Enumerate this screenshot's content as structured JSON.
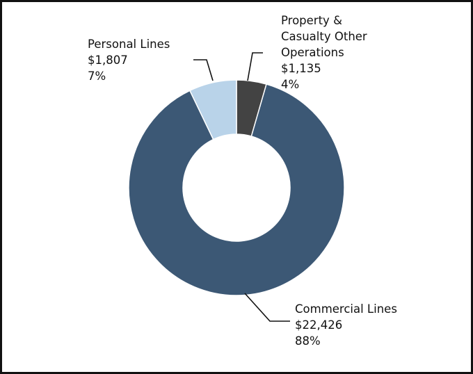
{
  "colors": {
    "commercial": "#3c5875",
    "personal": "#b9d3e9",
    "pc_other": "#434343",
    "leader": "#111111",
    "border": "#111111"
  },
  "chart_data": {
    "type": "pie",
    "subtype": "donut",
    "title": "",
    "start": "top",
    "direction": "clockwise",
    "series": [
      {
        "name": "Property & Casualty Other Operations",
        "label_lines": [
          "Property &",
          "Casualty Other",
          "Operations"
        ],
        "value_label": "$1,135",
        "value": 1135,
        "percent_label": "4%",
        "color": "#434343"
      },
      {
        "name": "Commercial Lines",
        "label_lines": [
          "Commercial Lines"
        ],
        "value_label": "$22,426",
        "value": 22426,
        "percent_label": "88%",
        "color": "#3c5875"
      },
      {
        "name": "Personal Lines",
        "label_lines": [
          "Personal Lines"
        ],
        "value_label": "$1,807",
        "value": 1807,
        "percent_label": "7%",
        "color": "#b9d3e9"
      }
    ]
  }
}
